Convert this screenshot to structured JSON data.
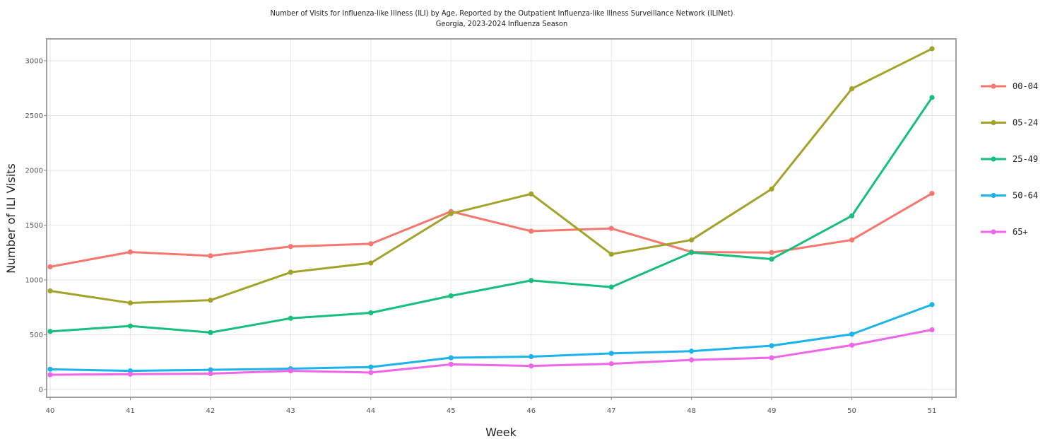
{
  "chart_data": {
    "type": "line",
    "title": "Number of Visits for Influenza-like Illness (ILI) by Age, Reported by the Outpatient Influenza-like Illness Surveillance Network (ILINet)",
    "subtitle": "Georgia, 2023-2024 Influenza Season",
    "xlabel": "Week",
    "ylabel": "Number of ILI Visits",
    "x": [
      40,
      41,
      42,
      43,
      44,
      45,
      46,
      47,
      48,
      49,
      50,
      51
    ],
    "x_tick_labels": [
      "40",
      "41",
      "42",
      "43",
      "44",
      "45",
      "46",
      "47",
      "48",
      "49",
      "50",
      "51"
    ],
    "y_ticks": [
      0,
      500,
      1000,
      1500,
      2000,
      2500,
      3000
    ],
    "y_tick_labels": [
      "0",
      "500",
      "1000",
      "1500",
      "2000",
      "2500",
      "3000"
    ],
    "ylim": [
      -60,
      3200
    ],
    "xlim": [
      40,
      51.3
    ],
    "grid": true,
    "legend_position": "right",
    "series": [
      {
        "name": "00-04",
        "color": "#f8766d",
        "values": [
          1120,
          1255,
          1220,
          1305,
          1330,
          1625,
          1445,
          1470,
          1255,
          1250,
          1365,
          1790
        ]
      },
      {
        "name": "05-24",
        "color": "#a3a32a",
        "values": [
          900,
          790,
          815,
          1070,
          1155,
          1605,
          1785,
          1235,
          1365,
          1830,
          2745,
          3110
        ]
      },
      {
        "name": "25-49",
        "color": "#17bf7c",
        "values": [
          530,
          580,
          520,
          650,
          700,
          855,
          995,
          935,
          1250,
          1190,
          1585,
          2665
        ]
      },
      {
        "name": "50-64",
        "color": "#1ab3ec",
        "values": [
          185,
          170,
          180,
          190,
          205,
          290,
          300,
          330,
          350,
          400,
          505,
          775
        ]
      },
      {
        "name": "65+",
        "color": "#f066ea",
        "values": [
          135,
          140,
          145,
          170,
          155,
          230,
          215,
          235,
          270,
          290,
          405,
          545
        ]
      }
    ]
  }
}
